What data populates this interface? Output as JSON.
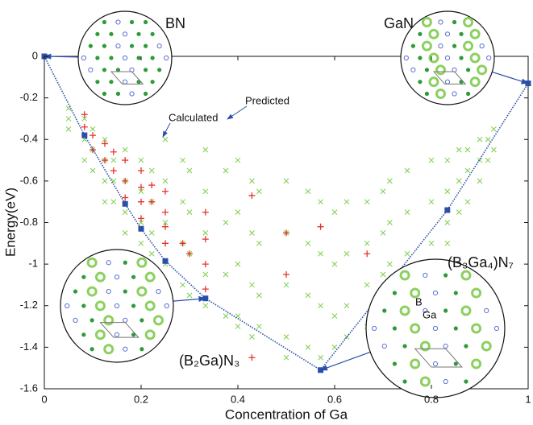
{
  "chart_data": {
    "type": "scatter",
    "x_label": "Concentration of Ga",
    "y_label": "Energy(eV)",
    "xlim": [
      0,
      1
    ],
    "ylim": [
      -1.6,
      0
    ],
    "xticks": [
      0,
      0.2,
      0.4,
      0.6,
      0.8,
      1
    ],
    "yticks": [
      -1.6,
      -1.4,
      -1.2,
      -1,
      -0.8,
      -0.6,
      -0.4,
      -0.2,
      0
    ],
    "series": [
      {
        "name": "Predicted",
        "color": "#7ccf4a",
        "marker": "x",
        "x": [
          0.05,
          0.05,
          0.05,
          0.083,
          0.083,
          0.083,
          0.1,
          0.1,
          0.1,
          0.125,
          0.125,
          0.125,
          0.125,
          0.143,
          0.143,
          0.143,
          0.167,
          0.167,
          0.167,
          0.167,
          0.2,
          0.2,
          0.2,
          0.2,
          0.222,
          0.222,
          0.222,
          0.222,
          0.25,
          0.25,
          0.25,
          0.25,
          0.25,
          0.286,
          0.286,
          0.286,
          0.286,
          0.3,
          0.3,
          0.3,
          0.3,
          0.333,
          0.333,
          0.333,
          0.333,
          0.333,
          0.375,
          0.375,
          0.375,
          0.375,
          0.4,
          0.4,
          0.4,
          0.4,
          0.4,
          0.429,
          0.429,
          0.429,
          0.429,
          0.444,
          0.444,
          0.444,
          0.444,
          0.5,
          0.5,
          0.5,
          0.5,
          0.5,
          0.545,
          0.545,
          0.545,
          0.545,
          0.571,
          0.571,
          0.571,
          0.571,
          0.6,
          0.6,
          0.6,
          0.6,
          0.625,
          0.625,
          0.625,
          0.625,
          0.667,
          0.667,
          0.667,
          0.667,
          0.7,
          0.7,
          0.7,
          0.7,
          0.714,
          0.714,
          0.714,
          0.714,
          0.75,
          0.75,
          0.75,
          0.75,
          0.8,
          0.8,
          0.8,
          0.8,
          0.833,
          0.833,
          0.833,
          0.833,
          0.857,
          0.857,
          0.857,
          0.875,
          0.875,
          0.875,
          0.9,
          0.9,
          0.9,
          0.917,
          0.917,
          0.929,
          0.929
        ],
        "values": [
          -0.25,
          -0.3,
          -0.35,
          -0.3,
          -0.4,
          -0.5,
          -0.35,
          -0.45,
          -0.55,
          -0.4,
          -0.5,
          -0.6,
          -0.7,
          -0.5,
          -0.6,
          -0.7,
          -0.45,
          -0.6,
          -0.75,
          -0.85,
          -0.5,
          -0.65,
          -0.8,
          -0.9,
          -0.55,
          -0.7,
          -0.85,
          -0.95,
          -0.4,
          -0.6,
          -0.8,
          -1.0,
          -1.1,
          -0.5,
          -0.7,
          -0.9,
          -1.1,
          -0.55,
          -0.75,
          -0.95,
          -1.15,
          -0.45,
          -0.65,
          -0.85,
          -1.05,
          -1.2,
          -0.55,
          -0.8,
          -1.05,
          -1.25,
          -0.5,
          -0.75,
          -1.0,
          -1.25,
          -1.3,
          -0.6,
          -0.85,
          -1.1,
          -1.35,
          -0.65,
          -0.9,
          -1.15,
          -1.3,
          -0.6,
          -0.85,
          -1.1,
          -1.35,
          -1.45,
          -0.65,
          -0.9,
          -1.15,
          -1.4,
          -0.7,
          -0.95,
          -1.2,
          -1.45,
          -0.75,
          -1.0,
          -1.25,
          -1.4,
          -0.7,
          -0.95,
          -1.2,
          -1.35,
          -0.7,
          -0.9,
          -1.1,
          -1.3,
          -0.65,
          -0.85,
          -1.05,
          -1.2,
          -0.6,
          -0.8,
          -1.0,
          -1.15,
          -0.55,
          -0.75,
          -0.95,
          -1.1,
          -0.5,
          -0.7,
          -0.9,
          -1.0,
          -0.5,
          -0.65,
          -0.8,
          -0.9,
          -0.45,
          -0.6,
          -0.75,
          -0.45,
          -0.55,
          -0.7,
          -0.4,
          -0.5,
          -0.6,
          -0.4,
          -0.5,
          -0.35,
          -0.45
        ]
      },
      {
        "name": "Calculated",
        "color": "#e8322a",
        "marker": "plus",
        "x": [
          0.083,
          0.083,
          0.1,
          0.1,
          0.125,
          0.125,
          0.143,
          0.143,
          0.167,
          0.167,
          0.167,
          0.2,
          0.2,
          0.2,
          0.2,
          0.222,
          0.222,
          0.25,
          0.25,
          0.25,
          0.25,
          0.286,
          0.3,
          0.333,
          0.333,
          0.333,
          0.333,
          0.429,
          0.429,
          0.5,
          0.5,
          0.571,
          0.667
        ],
        "values": [
          -0.28,
          -0.34,
          -0.38,
          -0.45,
          -0.42,
          -0.5,
          -0.46,
          -0.55,
          -0.5,
          -0.6,
          -0.68,
          -0.55,
          -0.63,
          -0.7,
          -0.78,
          -0.62,
          -0.7,
          -0.65,
          -0.75,
          -0.82,
          -0.9,
          -0.9,
          -0.95,
          -0.75,
          -0.88,
          -1.0,
          -1.12,
          -0.67,
          -1.45,
          -0.85,
          -1.05,
          -0.82,
          -0.95
        ]
      },
      {
        "color": "#2b4fa8",
        "marker": "square",
        "line": "dotted",
        "x": [
          0,
          0.083,
          0.167,
          0.2,
          0.25,
          0.333,
          0.571,
          0.833,
          1
        ],
        "values": [
          0,
          -0.38,
          -0.71,
          -0.83,
          -0.985,
          -1.165,
          -1.51,
          -0.74,
          -0.13
        ]
      }
    ],
    "annotations": {
      "bn": "BN",
      "gan": "GaN",
      "b3ga4n7": "(B₃Ga₄)N₇",
      "b2gan3": "(B₂Ga)N₃",
      "b": "B",
      "ga": "Ga"
    }
  }
}
